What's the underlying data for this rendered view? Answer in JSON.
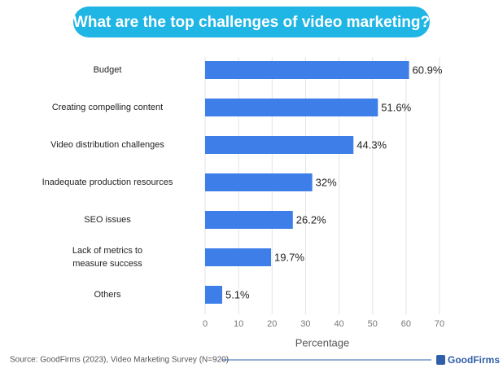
{
  "chart_data": {
    "type": "bar",
    "orientation": "horizontal",
    "title": "What are the top challenges of video marketing?",
    "categories": [
      "Budget",
      "Creating compelling content",
      "Video distribution challenges",
      "Inadequate production resources",
      "SEO issues",
      "Lack of metrics to\nmeasure success",
      "Others"
    ],
    "values": [
      60.9,
      51.6,
      44.3,
      32,
      26.2,
      19.7,
      5.1
    ],
    "value_labels": [
      "60.9%",
      "51.6%",
      "44.3%",
      "32%",
      "26.2%",
      "19.7%",
      "5.1%"
    ],
    "color": "#3d7ee9",
    "xlim": [
      0,
      70
    ],
    "xticks": [
      0,
      10,
      20,
      30,
      40,
      50,
      60,
      70
    ],
    "grid": true,
    "x_label": "Percentage",
    "source": "Source: GoodFirms (2023), Video Marketing Survey (N=920)",
    "logo": "GoodFirms"
  }
}
